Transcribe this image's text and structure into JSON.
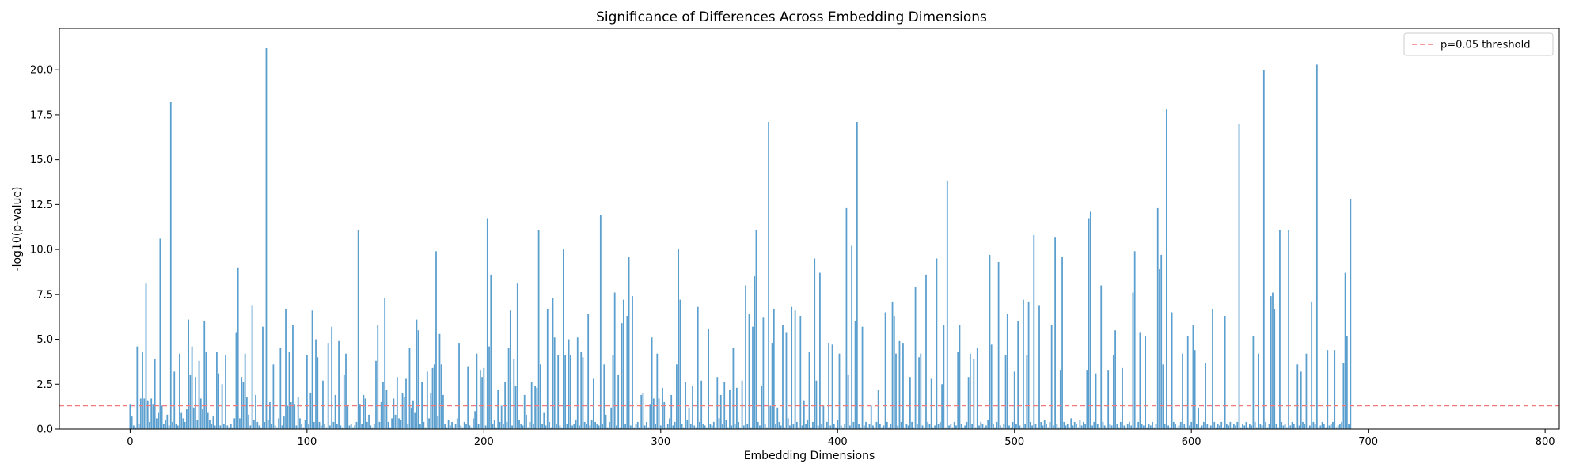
{
  "chart_data": {
    "type": "bar",
    "title": "Significance of Differences Across Embedding Dimensions",
    "xlabel": "Embedding Dimensions",
    "ylabel": "-log10(p-value)",
    "xlim": [
      -40,
      808
    ],
    "ylim": [
      0,
      22.3
    ],
    "x_ticks": [
      0,
      100,
      200,
      300,
      400,
      500,
      600,
      700,
      800
    ],
    "y_ticks": [
      0.0,
      2.5,
      5.0,
      7.5,
      10.0,
      12.5,
      15.0,
      17.5,
      20.0
    ],
    "y_tick_labels": [
      "0.0",
      "2.5",
      "5.0",
      "7.5",
      "10.0",
      "12.5",
      "15.0",
      "17.5",
      "20.0"
    ],
    "bar_color": "#5b9fcf",
    "threshold": {
      "label": "p=0.05 threshold",
      "value": 1.30103,
      "color": "#f27a7a",
      "style": "dashed"
    },
    "legend_position": "top-right",
    "grid": false,
    "series": [
      {
        "values": [
          1.4,
          0.7,
          0.2,
          0.1,
          4.6,
          0.3,
          1.7,
          4.3,
          1.7,
          8.1,
          1.6,
          0.4,
          1.7,
          1.4,
          3.9,
          0.6,
          0.9,
          10.6,
          1.3,
          0.3,
          0.5,
          0.8,
          0.2,
          18.2,
          0.4,
          3.2,
          0.3,
          0.2,
          4.2,
          0.9,
          0.6,
          0.4,
          1.1,
          6.1,
          3.0,
          4.6,
          1.2,
          2.9,
          0.5,
          3.8,
          1.7,
          1.1,
          6.0,
          4.3,
          0.9,
          0.5,
          0.3,
          0.7,
          0.2,
          4.3,
          3.1,
          0.2,
          2.5,
          0.3,
          4.1,
          0.2,
          0.1,
          0.3,
          0.1,
          0.6,
          5.4,
          9.0,
          0.6,
          2.9,
          2.6,
          4.2,
          1.8,
          0.8,
          0.2,
          6.9,
          0.5,
          1.9,
          0.4,
          0.2,
          0.1,
          5.7,
          0.4,
          21.2,
          0.5,
          1.5,
          0.3,
          3.6,
          0.2,
          0.1,
          0.6,
          4.5,
          0.2,
          0.7,
          6.7,
          1.3,
          4.3,
          1.5,
          5.8,
          1.4,
          0.2,
          1.8,
          0.6,
          0.3,
          0.1,
          0.5,
          4.1,
          0.3,
          2.0,
          6.6,
          0.4,
          5.0,
          4.0,
          0.4,
          0.2,
          2.7,
          0.3,
          0.1,
          4.8,
          0.2,
          5.7,
          0.4,
          1.9,
          0.3,
          4.9,
          0.2,
          0.1,
          3.0,
          4.2,
          1.3,
          0.2,
          0.3,
          0.1,
          0.2,
          0.4,
          11.1,
          1.4,
          0.3,
          1.9,
          1.7,
          0.4,
          0.8,
          0.2,
          0.1,
          0.3,
          3.8,
          5.8,
          0.4,
          1.5,
          2.6,
          7.3,
          2.2,
          0.4,
          0.1,
          0.6,
          1.7,
          0.8,
          2.9,
          0.6,
          0.5,
          2.0,
          1.8,
          2.8,
          0.3,
          4.5,
          1.2,
          1.6,
          0.9,
          6.1,
          5.5,
          0.3,
          2.6,
          0.4,
          0.1,
          3.2,
          0.6,
          2.0,
          3.4,
          3.6,
          9.9,
          0.7,
          5.3,
          3.6,
          1.9,
          0.3,
          0.1,
          0.5,
          0.2,
          0.4,
          0.1,
          0.3,
          0.6,
          4.8,
          0.2,
          0.1,
          0.4,
          0.3,
          3.5,
          0.2,
          0.1,
          0.6,
          1.0,
          4.2,
          0.3,
          3.3,
          2.9,
          3.4,
          0.2,
          11.7,
          4.6,
          8.6,
          0.3,
          0.5,
          0.1,
          2.2,
          0.4,
          1.3,
          0.3,
          2.6,
          0.4,
          4.5,
          6.6,
          0.2,
          3.9,
          2.4,
          8.1,
          0.5,
          0.3,
          0.2,
          1.9,
          0.8,
          0.1,
          0.4,
          2.6,
          0.3,
          2.4,
          2.3,
          11.1,
          3.6,
          0.3,
          0.9,
          0.2,
          6.7,
          0.4,
          0.1,
          7.3,
          5.1,
          0.3,
          4.1,
          0.2,
          0.1,
          10.0,
          4.1,
          0.3,
          5.0,
          4.1,
          0.2,
          0.3,
          0.5,
          5.1,
          0.2,
          4.3,
          4.0,
          0.4,
          0.3,
          6.4,
          0.2,
          0.5,
          2.8,
          0.4,
          0.3,
          0.2,
          11.9,
          0.3,
          3.6,
          0.8,
          0.1,
          0.4,
          1.2,
          4.1,
          7.6,
          0.2,
          3.0,
          0.1,
          5.9,
          7.2,
          0.3,
          6.3,
          9.6,
          0.2,
          7.4,
          0.1,
          0.3,
          0.4,
          0.1,
          1.9,
          2.0,
          0.2,
          0.4,
          0.1,
          1.4,
          5.1,
          1.7,
          0.3,
          4.2,
          1.7,
          0.2,
          2.3,
          1.5,
          0.1,
          0.3,
          0.6,
          1.9,
          0.2,
          0.4,
          3.6,
          10.0,
          7.2,
          0.3,
          0.1,
          2.6,
          0.5,
          1.2,
          0.3,
          2.4,
          0.2,
          0.1,
          6.8,
          0.4,
          2.7,
          0.3,
          0.2,
          0.1,
          5.6,
          0.3,
          0.2,
          0.4,
          0.1,
          2.9,
          0.6,
          1.9,
          0.3,
          2.6,
          0.5,
          0.1,
          2.2,
          0.2,
          4.5,
          0.3,
          2.3,
          0.4,
          0.1,
          2.7,
          0.2,
          8.0,
          0.3,
          6.4,
          0.1,
          5.7,
          8.5,
          11.1,
          0.4,
          0.2,
          2.4,
          6.2,
          0.3,
          0.1,
          17.1,
          1.3,
          4.8,
          6.7,
          0.3,
          1.2,
          0.4,
          0.2,
          5.8,
          0.1,
          5.4,
          0.6,
          0.2,
          6.8,
          0.3,
          6.6,
          0.4,
          0.1,
          6.3,
          0.2,
          1.6,
          0.3,
          0.5,
          4.3,
          0.1,
          0.4,
          9.5,
          2.7,
          0.2,
          8.7,
          0.3,
          1.3,
          0.1,
          0.4,
          4.8,
          0.2,
          4.7,
          0.3,
          0.1,
          0.5,
          4.2,
          0.2,
          0.1,
          0.3,
          12.3,
          3.0,
          0.2,
          10.2,
          0.4,
          6.0,
          17.1,
          0.3,
          0.1,
          5.7,
          0.2,
          0.4,
          0.1,
          0.3,
          1.3,
          0.2,
          0.1,
          0.4,
          2.2,
          0.3,
          0.1,
          0.2,
          6.5,
          0.4,
          0.1,
          0.3,
          7.1,
          6.3,
          4.2,
          0.2,
          4.9,
          0.4,
          4.8,
          0.1,
          0.3,
          0.2,
          2.9,
          0.4,
          0.1,
          7.9,
          0.3,
          4.0,
          4.2,
          0.2,
          0.1,
          8.6,
          0.4,
          0.3,
          2.8,
          0.1,
          0.2,
          9.5,
          0.3,
          0.4,
          2.5,
          5.8,
          0.1,
          13.8,
          0.2,
          0.3,
          0.1,
          0.4,
          0.2,
          4.3,
          5.8,
          0.3,
          0.1,
          0.2,
          0.4,
          2.9,
          4.2,
          0.3,
          3.9,
          0.1,
          4.5,
          0.2,
          0.4,
          0.3,
          0.1,
          0.2,
          0.5,
          9.7,
          4.7,
          0.3,
          0.1,
          0.4,
          9.3,
          0.2,
          0.1,
          0.3,
          4.1,
          6.4,
          0.2,
          0.1,
          0.4,
          3.2,
          0.3,
          6.0,
          0.2,
          0.1,
          7.2,
          0.3,
          4.1,
          7.1,
          0.4,
          0.2,
          10.8,
          0.3,
          0.1,
          6.9,
          0.4,
          0.2,
          0.5,
          0.3,
          0.1,
          0.4,
          5.8,
          0.2,
          10.7,
          0.3,
          0.1,
          3.3,
          9.6,
          0.4,
          0.2,
          0.3,
          0.1,
          0.6,
          0.2,
          0.4,
          0.3,
          0.1,
          0.5,
          0.2,
          0.4,
          0.3,
          3.3,
          11.7,
          12.1,
          0.2,
          0.4,
          3.1,
          0.3,
          0.1,
          8.0,
          0.4,
          0.2,
          0.1,
          3.3,
          0.3,
          0.2,
          4.1,
          5.5,
          0.3,
          0.1,
          0.4,
          3.4,
          0.2,
          0.1,
          0.3,
          0.4,
          0.2,
          7.6,
          9.9,
          0.1,
          0.4,
          5.4,
          0.3,
          0.2,
          5.2,
          0.1,
          0.3,
          0.2,
          0.4,
          0.1,
          0.3,
          12.3,
          8.9,
          9.7,
          3.6,
          0.3,
          17.8,
          0.2,
          0.1,
          6.5,
          0.4,
          0.3,
          0.1,
          0.2,
          0.4,
          4.2,
          0.3,
          0.1,
          5.2,
          0.2,
          0.4,
          5.8,
          4.4,
          0.3,
          1.2,
          0.1,
          0.2,
          0.4,
          3.7,
          0.3,
          0.1,
          0.2,
          6.7,
          0.4,
          0.1,
          0.3,
          0.2,
          0.4,
          0.1,
          6.3,
          0.3,
          0.2,
          0.4,
          0.1,
          0.3,
          0.2,
          0.4,
          17.0,
          0.1,
          0.3,
          0.2,
          0.4,
          0.1,
          0.3,
          0.2,
          5.2,
          0.4,
          0.1,
          4.2,
          0.3,
          0.2,
          20.0,
          0.4,
          0.1,
          0.3,
          7.4,
          7.6,
          6.7,
          0.3,
          0.1,
          11.1,
          0.4,
          0.2,
          0.3,
          0.1,
          11.1,
          0.2,
          0.4,
          0.3,
          0.1,
          3.6,
          0.2,
          3.2,
          0.4,
          0.3,
          4.2,
          0.1,
          0.2,
          7.1,
          0.4,
          0.3,
          20.3,
          0.1,
          0.2,
          0.4,
          0.3,
          0.1,
          4.4,
          0.2,
          0.3,
          0.4,
          4.4,
          0.1,
          0.2,
          0.3,
          0.4,
          3.7,
          8.7,
          5.2,
          0.3,
          12.8
        ]
      }
    ]
  }
}
